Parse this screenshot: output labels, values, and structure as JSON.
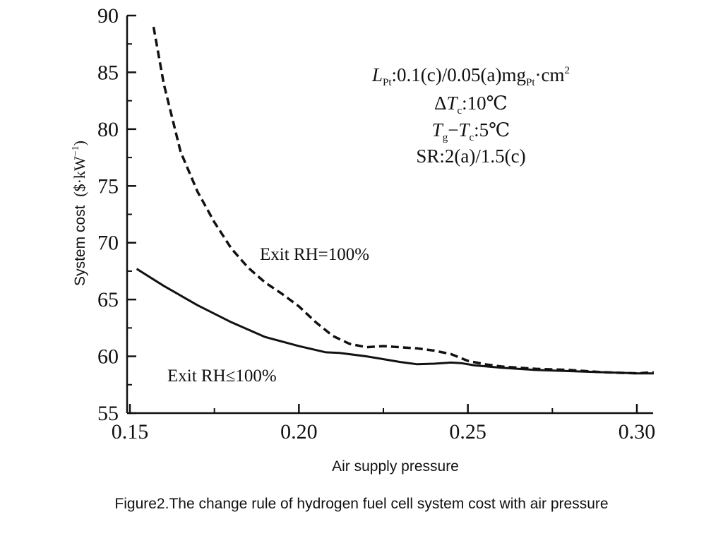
{
  "caption": "Figure2.The change rule of hydrogen fuel cell system cost with air pressure",
  "chart_data": {
    "type": "line",
    "xlabel": "Air supply pressure",
    "ylabel_text": "System cost",
    "ylabel_unit_prefix": "($·kW",
    "ylabel_unit_exp": "−1",
    "ylabel_unit_suffix": ")",
    "xlim": [
      0.15,
      0.305
    ],
    "ylim": [
      55,
      90
    ],
    "x_ticks": [
      "0.15",
      "0.20",
      "0.25",
      "0.30"
    ],
    "x_tick_values": [
      0.15,
      0.2,
      0.25,
      0.3
    ],
    "y_ticks": [
      "55",
      "60",
      "65",
      "70",
      "75",
      "80",
      "85",
      "90"
    ],
    "y_tick_values": [
      55,
      60,
      65,
      70,
      75,
      80,
      85,
      90
    ],
    "grid": false,
    "series": [
      {
        "name": "Exit RH=100%",
        "style": "dashed",
        "x": [
          0.157,
          0.16,
          0.165,
          0.17,
          0.175,
          0.18,
          0.185,
          0.19,
          0.195,
          0.2,
          0.205,
          0.21,
          0.215,
          0.22,
          0.225,
          0.23,
          0.235,
          0.24,
          0.245,
          0.25,
          0.255,
          0.26,
          0.27,
          0.28,
          0.29,
          0.3,
          0.305
        ],
        "y": [
          89.0,
          84.0,
          78.0,
          74.5,
          71.8,
          69.5,
          67.8,
          66.5,
          65.5,
          64.4,
          63.0,
          61.8,
          61.1,
          60.8,
          60.9,
          60.8,
          60.7,
          60.5,
          60.2,
          59.6,
          59.3,
          59.1,
          58.9,
          58.8,
          58.6,
          58.5,
          58.6
        ]
      },
      {
        "name": "Exit RH≤100%",
        "style": "solid",
        "x": [
          0.152,
          0.16,
          0.17,
          0.18,
          0.19,
          0.2,
          0.208,
          0.212,
          0.22,
          0.23,
          0.235,
          0.24,
          0.245,
          0.248,
          0.252,
          0.26,
          0.27,
          0.28,
          0.29,
          0.3,
          0.305
        ],
        "y": [
          67.7,
          66.2,
          64.5,
          63.0,
          61.7,
          60.9,
          60.35,
          60.3,
          60.0,
          59.5,
          59.3,
          59.35,
          59.45,
          59.4,
          59.2,
          59.0,
          58.8,
          58.7,
          58.6,
          58.5,
          58.5
        ]
      }
    ],
    "legend": "inline labels",
    "annotations": {
      "dashed_label": "Exit RH=100%",
      "solid_label": "Exit RH≤100%",
      "params": [
        {
          "parts": [
            {
              "t": "L",
              "s": "italic"
            },
            {
              "t": "Pt",
              "s": "sub"
            },
            {
              "t": ":0.1(c)/0.05(a)mg",
              "s": "normal"
            },
            {
              "t": "Pt",
              "s": "sub"
            },
            {
              "t": "·cm",
              "s": "normal"
            },
            {
              "t": "2",
              "s": "sup"
            }
          ]
        },
        {
          "parts": [
            {
              "t": "Δ",
              "s": "normal"
            },
            {
              "t": "T",
              "s": "italic"
            },
            {
              "t": "c",
              "s": "sub"
            },
            {
              "t": ":10℃",
              "s": "normal"
            }
          ]
        },
        {
          "parts": [
            {
              "t": "T",
              "s": "italic"
            },
            {
              "t": "g",
              "s": "sub"
            },
            {
              "t": "−",
              "s": "normal"
            },
            {
              "t": "T",
              "s": "italic"
            },
            {
              "t": "c",
              "s": "sub"
            },
            {
              "t": ":5℃",
              "s": "normal"
            }
          ]
        },
        {
          "parts": [
            {
              "t": "SR:2(a)/1.5(c)",
              "s": "normal"
            }
          ]
        }
      ]
    }
  }
}
